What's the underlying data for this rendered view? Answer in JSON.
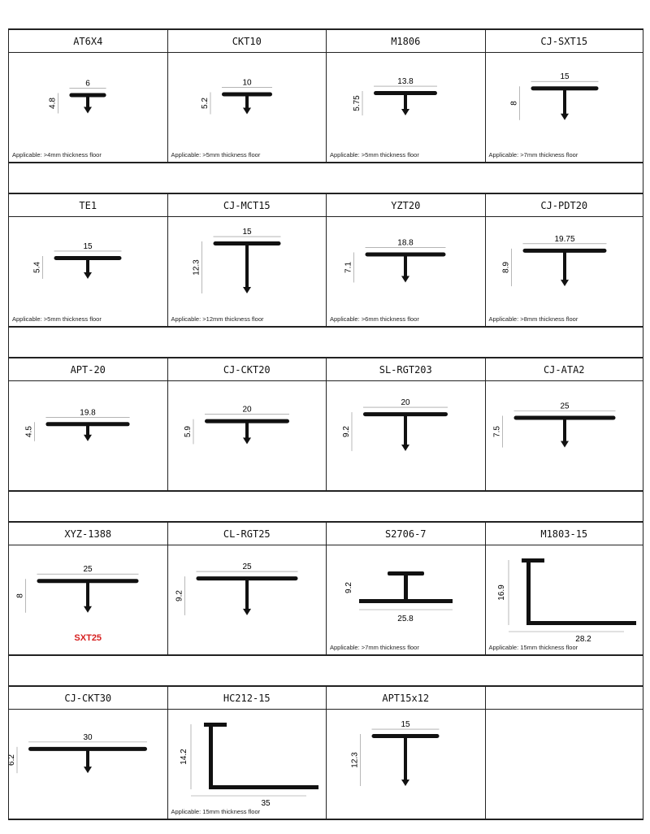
{
  "rows": [
    [
      {
        "name": "AT6X4",
        "type": "T",
        "w": "6",
        "h": "4.8",
        "app": "Applicable: >4mm thickness floor"
      },
      {
        "name": "CKT10",
        "type": "T",
        "w": "10",
        "h": "5.2",
        "app": "Applicable: >5mm thickness floor"
      },
      {
        "name": "M1806",
        "type": "T",
        "w": "13.8",
        "h": "5.75",
        "app": "Applicable: >5mm thickness floor"
      },
      {
        "name": "CJ-SXT15",
        "type": "T",
        "w": "15",
        "h": "8",
        "app": "Applicable: >7mm thickness floor"
      }
    ],
    [
      {
        "name": "TE1",
        "type": "T",
        "w": "15",
        "h": "5.4",
        "app": "Applicable: >5mm thickness floor"
      },
      {
        "name": "CJ-MCT15",
        "type": "T",
        "w": "15",
        "h": "12.3",
        "app": "Applicable: >12mm thickness floor"
      },
      {
        "name": "YZT20",
        "type": "T",
        "w": "18.8",
        "h": "7.1",
        "app": "Applicable: >6mm thickness floor"
      },
      {
        "name": "CJ-PDT20",
        "type": "T",
        "w": "19.75",
        "h": "8.9",
        "app": "Applicable: >8mm thickness floor"
      }
    ],
    [
      {
        "name": "APT-20",
        "type": "T",
        "w": "19.8",
        "h": "4.5",
        "app": ""
      },
      {
        "name": "CJ-CKT20",
        "type": "T",
        "w": "20",
        "h": "5.9",
        "app": ""
      },
      {
        "name": "SL-RGT203",
        "type": "T",
        "w": "20",
        "h": "9.2",
        "app": ""
      },
      {
        "name": "CJ-ATA2",
        "type": "T",
        "w": "25",
        "h": "7.5",
        "app": ""
      }
    ],
    [
      {
        "name": "XYZ-1388",
        "type": "T",
        "w": "25",
        "h": "8",
        "app": "",
        "red": "SXT25"
      },
      {
        "name": "CL-RGT25",
        "type": "T",
        "w": "25",
        "h": "9.2",
        "app": ""
      },
      {
        "name": "S2706-7",
        "type": "H",
        "w": "25.8",
        "h": "9.2",
        "app": "Applicable: >7mm thickness floor"
      },
      {
        "name": "M1803-15",
        "type": "L",
        "w": "28.2",
        "h": "16.9",
        "app": "Applicable: 15mm thickness floor"
      }
    ],
    [
      {
        "name": "CJ-CKT30",
        "type": "T",
        "w": "30",
        "h": "6.2",
        "app": ""
      },
      {
        "name": "HC212-15",
        "type": "L",
        "w": "35",
        "h": "14.2",
        "app": "Applicable: 15mm thickness floor"
      },
      {
        "name": "APT15x12",
        "type": "T",
        "w": "15",
        "h": "12.3",
        "app": ""
      },
      null
    ]
  ]
}
